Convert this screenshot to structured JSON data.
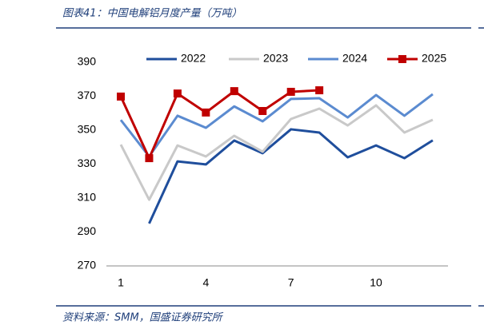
{
  "chart_data": {
    "type": "line",
    "title": "图表41：中国电解铝月度产量（万吨）",
    "source": "资料来源：SMM，国盛证券研究所",
    "categories": [
      1,
      null,
      null,
      4,
      null,
      null,
      7,
      null,
      null,
      10,
      null,
      null
    ],
    "ylim": [
      270,
      390
    ],
    "yticks": [
      270,
      290,
      310,
      330,
      350,
      370,
      390
    ],
    "grid": false,
    "legend": "top",
    "series": [
      {
        "name": "2022",
        "color": "#1f4e9c",
        "marker": false,
        "values": [
          null,
          295,
          331.6,
          329.8,
          343.9,
          336.4,
          350.5,
          348.6,
          334,
          341,
          333.5,
          344
        ]
      },
      {
        "name": "2023",
        "color": "#c9c9c9",
        "marker": false,
        "values": [
          341.5,
          309,
          341,
          334.5,
          346.7,
          337.3,
          356.6,
          362.7,
          352.8,
          364.6,
          348.6,
          356.1
        ]
      },
      {
        "name": "2024",
        "color": "#5b8bd0",
        "marker": false,
        "values": [
          356,
          334.5,
          358.5,
          351.4,
          364,
          355.2,
          368.4,
          368.8,
          357.5,
          370.7,
          358.5,
          371.2
        ]
      },
      {
        "name": "2025",
        "color": "#c00000",
        "marker": true,
        "values": [
          369.8,
          333.5,
          371.6,
          360.4,
          373,
          361.3,
          372.6,
          373.5,
          null,
          null,
          null,
          null
        ]
      }
    ]
  }
}
